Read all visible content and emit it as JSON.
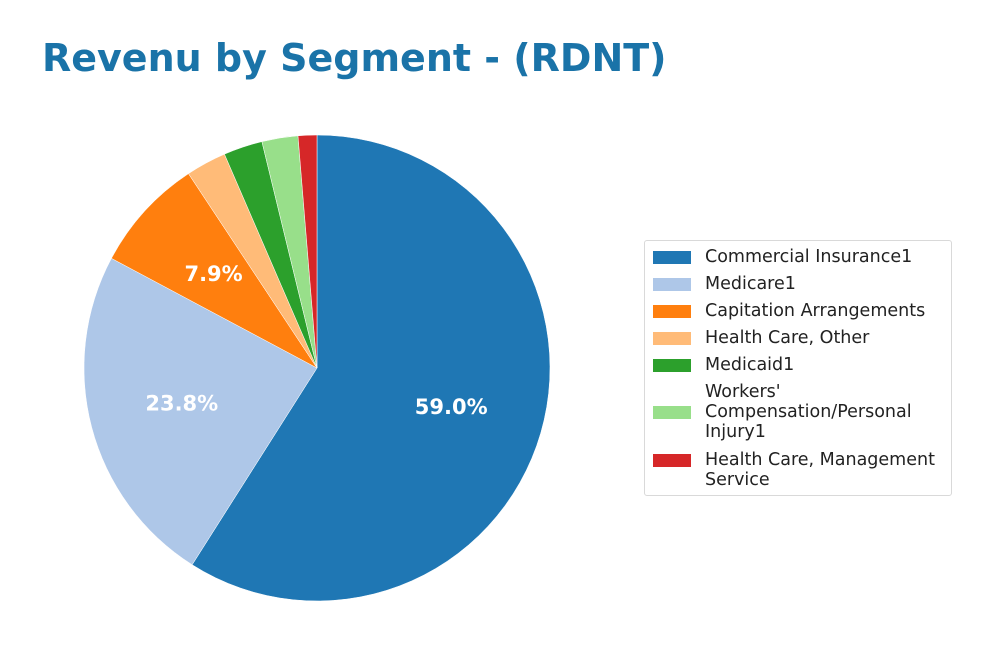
{
  "chart_data": {
    "type": "pie",
    "title": "Revenu by Segment - (RDNT)",
    "start_angle_deg": 90,
    "direction": "clockwise",
    "legend_placement": "right",
    "slices": [
      {
        "name": "Commercial Insurance1",
        "value": 59.0,
        "color": "#1f77b4",
        "label": "59.0%"
      },
      {
        "name": "Medicare1",
        "value": 23.8,
        "color": "#aec7e8",
        "label": "23.8%"
      },
      {
        "name": "Capitation Arrangements",
        "value": 7.9,
        "color": "#ff7f0e",
        "label": "7.9%"
      },
      {
        "name": "Health Care, Other",
        "value": 2.8,
        "color": "#ffbb78",
        "label": ""
      },
      {
        "name": "Medicaid1",
        "value": 2.7,
        "color": "#2ca02c",
        "label": ""
      },
      {
        "name": "Workers'\nCompensation/Personal\nInjury1",
        "value": 2.5,
        "color": "#98df8a",
        "label": ""
      },
      {
        "name": "Health Care, Management\nService",
        "value": 1.3,
        "color": "#d62728",
        "label": ""
      }
    ]
  }
}
